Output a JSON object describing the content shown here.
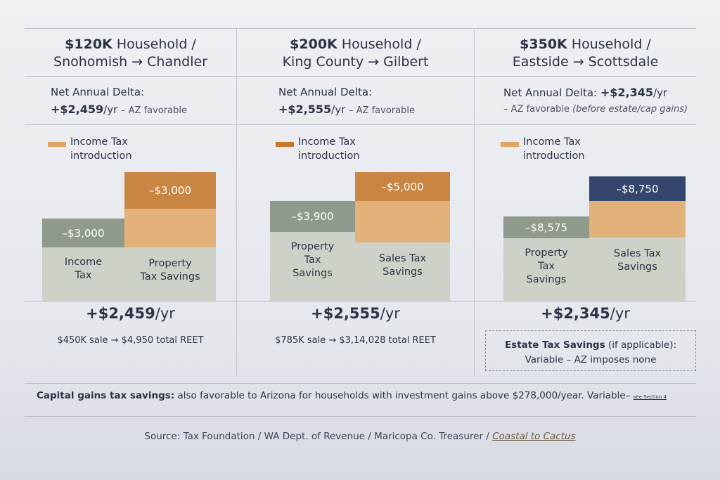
{
  "panels": [
    {
      "title": "$120K",
      "title_rest": "Household /",
      "route": "Snohomish → Chandler",
      "delta_label": "Net Annual Delta:",
      "delta_value": "+$2,459",
      "delta_unit": "/yr",
      "delta_note": "– AZ favorable",
      "legend": [
        "Income Tax",
        "introduction"
      ],
      "left_value": "–$3,000",
      "left_label": [
        "Income",
        "Tax"
      ],
      "right_value": "–$3,000",
      "right_label": [
        "Property",
        "Tax Savings"
      ],
      "result": "+$2,459",
      "result_unit": "/yr",
      "footer": "$450K sale → $4,950 total REET"
    },
    {
      "title": "$200K",
      "title_rest": "Household /",
      "route": "King County → Gilbert",
      "delta_label": "Net Annual Delta:",
      "delta_value": "+$2,555",
      "delta_unit": "/yr",
      "delta_note": "– AZ favorable",
      "legend": [
        "Income Tax",
        "introduction"
      ],
      "left_value": "–$3,900",
      "left_label": [
        "Property",
        "Tax",
        "Savings"
      ],
      "right_value": "–$5,000",
      "right_label": [
        "Sales Tax",
        "Savings"
      ],
      "result": "+$2,555",
      "result_unit": "/yr",
      "footer": "$785K sale → $3,14,028 total REET"
    },
    {
      "title": "$350K",
      "title_rest": "Household /",
      "route": "Eastside → Scottsdale",
      "delta_label": "Net Annual Delta:",
      "delta_value": "+$2,345",
      "delta_unit": "/yr",
      "delta_note": "– AZ favorable",
      "delta_note_italic": "(before estate/cap gains)",
      "legend": [
        "Income Tax",
        "introduction"
      ],
      "left_value": "–$8,575",
      "left_label": [
        "Property",
        "Tax",
        "Savings"
      ],
      "right_value": "–$8,750",
      "right_label": [
        "Sales Tax",
        "Savings"
      ],
      "result": "+$2,345",
      "result_unit": "/yr",
      "estate": {
        "title": "Estate Tax Savings",
        "title_rest": "(if applicable):",
        "text": "Variable – AZ imposes none"
      }
    }
  ],
  "capital_gains": {
    "label": "Capital gains tax savings:",
    "text": "also favorable to Arizona for households with investment gains above $278,000/year. Variable–",
    "link": "see Section 4"
  },
  "source": {
    "text": "Source: Tax Foundation / WA Dept. of Revenue / Maricopa Co. Treasurer /",
    "brand": "Coastal to Cactus"
  }
}
